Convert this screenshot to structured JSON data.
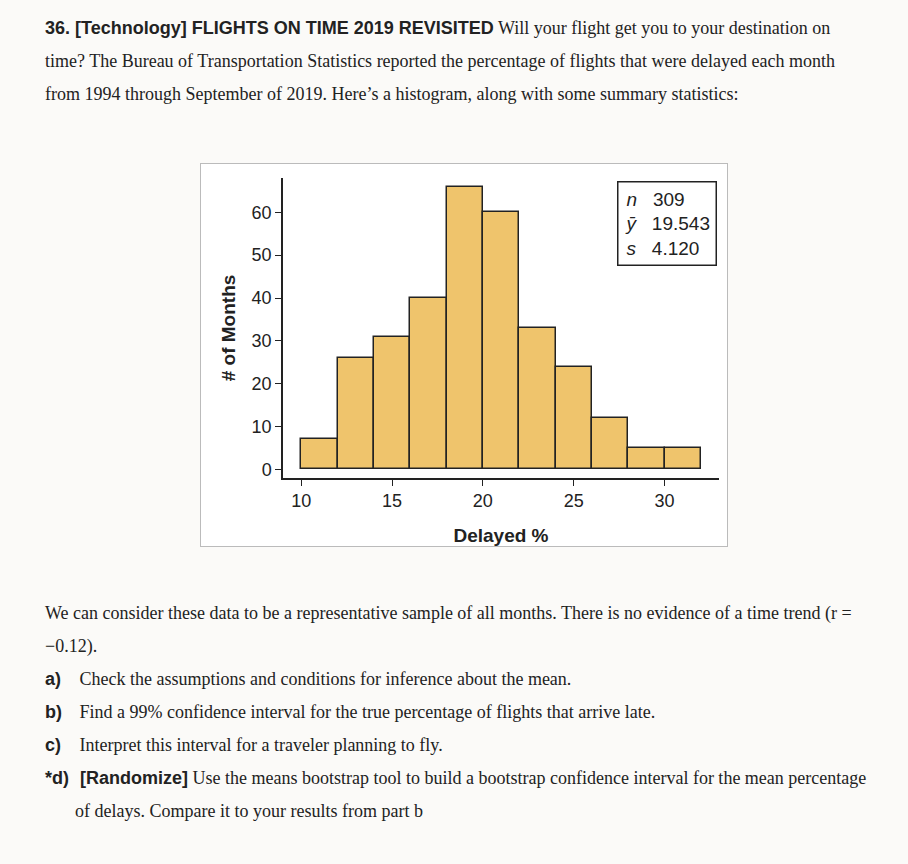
{
  "problem": {
    "number": "36.",
    "tag": "[Technology]",
    "title": "FLIGHTS ON TIME 2019 REVISITED",
    "intro": "Will your flight get you to your destination on time? The Bureau of Transportation Statistics reported the percentage of flights that were delayed each month from 1994 through September of 2019. Here’s a histogram, along with some summary statistics:",
    "after": "We can consider these data to be a representative sample of all months. There is no evidence of a time trend (r = −0.12).",
    "parts": [
      {
        "label": "a)",
        "text": "Check the assumptions and conditions for inference about the mean."
      },
      {
        "label": "b)",
        "text": "Find a 99% confidence interval for the true percentage of flights that arrive late."
      },
      {
        "label": "c)",
        "text": "Interpret this interval for a traveler planning to fly."
      },
      {
        "label": "*d)",
        "tag": "[Randomize]",
        "text": "Use the means bootstrap tool to build a bootstrap confidence interval for the mean percentage of delays. Compare it to your results from part b"
      }
    ]
  },
  "chart_data": {
    "type": "histogram",
    "x_label": "Delayed %",
    "y_label": "# of Months",
    "bins": [
      10,
      12,
      14,
      16,
      18,
      20,
      22,
      24,
      26,
      28,
      30,
      32
    ],
    "values": [
      7,
      26,
      31,
      40,
      66,
      60,
      33,
      24,
      12,
      5,
      5
    ],
    "color": "#efc46c",
    "xlim": [
      9,
      33
    ],
    "xticks": [
      10,
      15,
      20,
      25,
      30
    ],
    "ylim": [
      -2,
      68
    ],
    "yticks": [
      0,
      10,
      20,
      30,
      40,
      50,
      60
    ],
    "grid": false,
    "stats": [
      {
        "label": "n",
        "value": "309"
      },
      {
        "label": "ȳ",
        "value": "19.543"
      },
      {
        "label": "s",
        "value": "4.120"
      }
    ]
  }
}
